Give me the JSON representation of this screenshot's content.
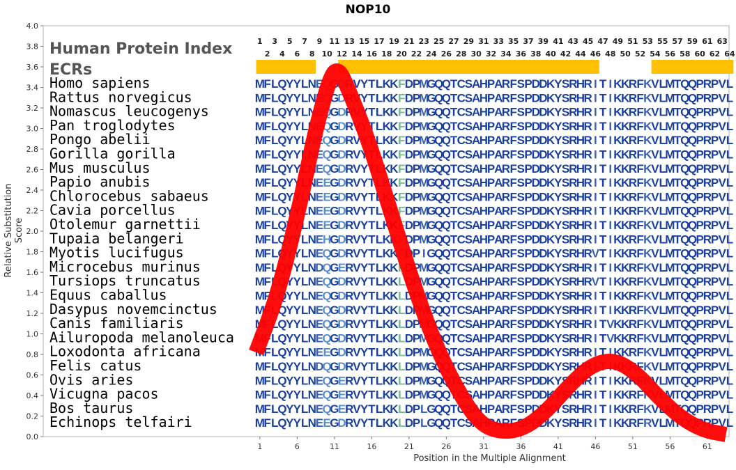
{
  "chart_data": {
    "type": "line",
    "title": "NOP10",
    "xlabel": "Position in the Multiple Alignment",
    "ylabel": "Relative Substitution Score",
    "xlim": [
      0,
      64
    ],
    "ylim": [
      0.0,
      4.0
    ],
    "x_ticks": [
      1,
      6,
      11,
      16,
      21,
      26,
      31,
      36,
      41,
      46,
      51,
      56,
      61
    ],
    "y_ticks": [
      "0.0",
      "0.2",
      "0.4",
      "0.6",
      "0.8",
      "1.0",
      "1.2",
      "1.4",
      "1.6",
      "1.8",
      "2.0",
      "2.2",
      "2.4",
      "2.6",
      "2.8",
      "3.0",
      "3.2",
      "3.4",
      "3.6",
      "3.8",
      "4.0"
    ],
    "series": [
      {
        "color": "#ff0000",
        "x": [
          0,
          3,
          6,
          8,
          10,
          11,
          12,
          15,
          18,
          21,
          24,
          27,
          30,
          33,
          36,
          39,
          42,
          45,
          48,
          51,
          54,
          57,
          60,
          63
        ],
        "y": [
          0.82,
          1.4,
          2.3,
          3.0,
          3.52,
          3.58,
          3.45,
          2.9,
          2.2,
          1.5,
          0.9,
          0.45,
          0.12,
          0.04,
          0.08,
          0.25,
          0.5,
          0.7,
          0.75,
          0.62,
          0.38,
          0.18,
          0.06,
          0.02
        ]
      }
    ],
    "inset_label_1": "Human Protein Index",
    "inset_label_2": "ECRs",
    "position_numbers_odd": [
      1,
      3,
      5,
      7,
      9,
      11,
      13,
      15,
      17,
      19,
      21,
      23,
      25,
      27,
      29,
      31,
      33,
      35,
      37,
      39,
      41,
      43,
      45,
      47,
      49,
      51,
      53,
      55,
      57,
      59,
      61,
      63
    ],
    "position_numbers_even": [
      2,
      4,
      6,
      8,
      10,
      12,
      14,
      16,
      18,
      20,
      22,
      24,
      26,
      28,
      30,
      32,
      34,
      36,
      38,
      40,
      42,
      44,
      46,
      48,
      50,
      52,
      54,
      56,
      58,
      60,
      62,
      64
    ],
    "ecr_bar_color": "#ffc000",
    "ecr_segments": [
      [
        1,
        8
      ],
      [
        12,
        46
      ],
      [
        54,
        64
      ]
    ],
    "species": [
      "Homo sapiens",
      "Rattus norvegicus",
      "Nomascus leucogenys",
      "Pan troglodytes",
      "Pongo abelii",
      "Gorilla gorilla",
      "Mus musculus",
      "Papio anubis",
      "Chlorocebus sabaeus",
      "Cavia porcellus",
      "Otolemur garnettii",
      "Tupaia belangeri",
      "Myotis lucifugus",
      "Microcebus murinus",
      "Tursiops truncatus",
      "Equus caballus",
      "Dasypus novemcinctus",
      "Canis familiaris",
      "Ailuropoda melanoleuca",
      "Loxodonta africana",
      "Felis catus",
      "Ovis aries",
      "Vicugna pacos",
      "Bos taurus",
      "Echinops telfairi"
    ],
    "sequences": [
      "MFLQYYLNEQGDRVYTLKKFDPMGQQTCSAHPARFSPDDKYSRHRITIKKRFKVLMTQQPRPVL",
      "MFLQYYLNEQGDRVYTLKKFDPMGQQTCSAHPARFSPDDKYSRHRITIKKRFKVLMTQQPRPVL",
      "MFLQYYLNEQGDRVYTLKKFDPMGQQTCSAHPARFSPDDKYSRHRITIKKRFKVLMTQQPRPVL",
      "MFLQYYLNEQGDRVYTLKKFDPMGQQTCSAHPARFSPDDKYSRHRITIKKRFKVLMTQQPRPVL",
      "MFLQYYLNEQGDRVYTLKKFDPMGQQTCSAHPARFSPDDKYSRHRITIKKRFKVLMTQQPRPVL",
      "MFLQYYLNEQGDRVYTLKKFDPMGQQTCSAHPARFSPDDKYSRHRITIKKRFKVLMTQQPRPVL",
      "MFLQYYLNEQGDRVYTLKKFDPMGQQTCSAHPARFSPDDKYSRHRITIKKRFKVLMTQQPRPVL",
      "MFLQYYLNEEGDRVYTLKKFDPMGQQTCSAHPARFSPDDKYSRHRITIKKRFKVLMTQQPRPVL",
      "MFLQYYLNEEGDRVYTLKKFDPMGQQTCSAHPARFSPDDKYSRHRITIKKRFKVLMTQQPRPVL",
      "MFLQYYLNEEGDRVYTLKKFDPMGQQTCSAHPARFSPDDKYSRHRITIKKRFKVLMTQQPRPVL",
      "MFLQYYLNEEGDRVYTLKKFDPMGQQTCSAHPARFSPDDKYSRHRITIKKRFKVLMTQQPRPVL",
      "MFLQYYLNEHGDRVYTLKKFDPMGQQTCSAHPARFSPDDKYSRHRITIKKRFKVLMTQQPRPVL",
      "MFLQYYLNEQGDRVYTLKKFDPIGQQTCSAHPARFSPDDKYSRHRVTIKKRFKVLMTQQPRPVL",
      "MFLQYYLNDQGERVYTLKKFDPMGQQTCSAHPARFSPDDKYSRHRITIKKRFKVLMTQQPRPVL",
      "MFLQYYLNEQGDRVYTLKKLDPMGQQTCSAHPARFSPDDKYSRHRVTIKKRFKVLMTQQPRPVL",
      "MFLQYYLNEQGDRVYTLKKLDPMGQQTCSAHPARFSPDDKYSRHRITIKKRFKVLMTQQPRPVL",
      "MFLQYYLNEQGDRVYTLKKLDPMGQQTCSAHPARFSPDDKYSRHRITIKKRFKVLMTQQPRPVL",
      "MFLQYYLNEQGDRVYTLKKLDPMGQQTCSAHPARFSPDDKYSRHRITVKKRFKVLMTQQPRPVL",
      "MFLQYYLNEQGDRVYTLKKLDPMGQQTCSAHPARFSPDDKYSRHRITVKKRFKVLMTQQPRPVL",
      "MFLQYYLNEEGDRVYTLKKLDPMGQQTCSAHPARFSPDDKYSRHRITIKKRFKVLMTQQPRPVL",
      "MFLQYYLNDQGDRVYTLKKLDPMGQQTCSAHPARFSPDDKYSRHRITIKKRFKVLMTQQPRPVL",
      "MFLQYYLNEQGERVYTLKKLDPMGQQTCSAHPARFSPDDKYSRHRITIKKRFKVLMTQQPRPVL",
      "MFLQYYLNEQGERVYTLKKLDPMGQQTCSAHPARFSPDDKYSRHRITIKKRFKVLMTQQPRPVL",
      "MFLQYYLNEQGERVYTLKKLDPLGQQTCSAHPARFSPDDKYSRHRITIKKRFKVLMTQQPRPVL",
      "MFLQYYLNEEGDRVYTLKKLDPLGQQTCSAHPARFSPDDKYSRHRITIKKRFRVLMTQQPRPVL"
    ]
  }
}
